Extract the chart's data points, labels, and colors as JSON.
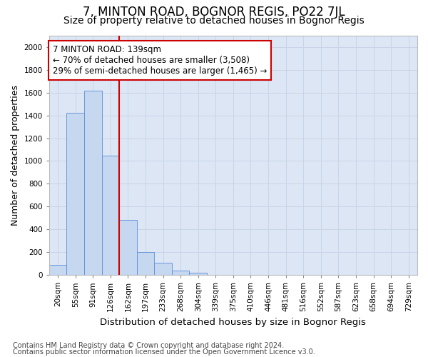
{
  "title": "7, MINTON ROAD, BOGNOR REGIS, PO22 7JL",
  "subtitle": "Size of property relative to detached houses in Bognor Regis",
  "xlabel": "Distribution of detached houses by size in Bognor Regis",
  "ylabel": "Number of detached properties",
  "categories": [
    "20sqm",
    "55sqm",
    "91sqm",
    "126sqm",
    "162sqm",
    "197sqm",
    "233sqm",
    "268sqm",
    "304sqm",
    "339sqm",
    "375sqm",
    "410sqm",
    "446sqm",
    "481sqm",
    "516sqm",
    "552sqm",
    "587sqm",
    "623sqm",
    "658sqm",
    "694sqm",
    "729sqm"
  ],
  "values": [
    85,
    1420,
    1615,
    1050,
    480,
    200,
    105,
    35,
    20,
    0,
    0,
    0,
    0,
    0,
    0,
    0,
    0,
    0,
    0,
    0,
    0
  ],
  "bar_color": "#c5d8f0",
  "bar_edge_color": "#5b8dd9",
  "grid_color": "#c8d4e8",
  "background_color": "#dce6f5",
  "vline_pos": 3.5,
  "vline_color": "#cc0000",
  "annotation_text": "7 MINTON ROAD: 139sqm\n← 70% of detached houses are smaller (3,508)\n29% of semi-detached houses are larger (1,465) →",
  "annotation_box_facecolor": "#ffffff",
  "annotation_box_edgecolor": "#cc0000",
  "footer1": "Contains HM Land Registry data © Crown copyright and database right 2024.",
  "footer2": "Contains public sector information licensed under the Open Government Licence v3.0.",
  "ylim": [
    0,
    2100
  ],
  "yticks": [
    0,
    200,
    400,
    600,
    800,
    1000,
    1200,
    1400,
    1600,
    1800,
    2000
  ],
  "title_fontsize": 12,
  "subtitle_fontsize": 10,
  "tick_fontsize": 7.5,
  "ylabel_fontsize": 9,
  "xlabel_fontsize": 9.5,
  "annot_fontsize": 8.5,
  "footer_fontsize": 7
}
